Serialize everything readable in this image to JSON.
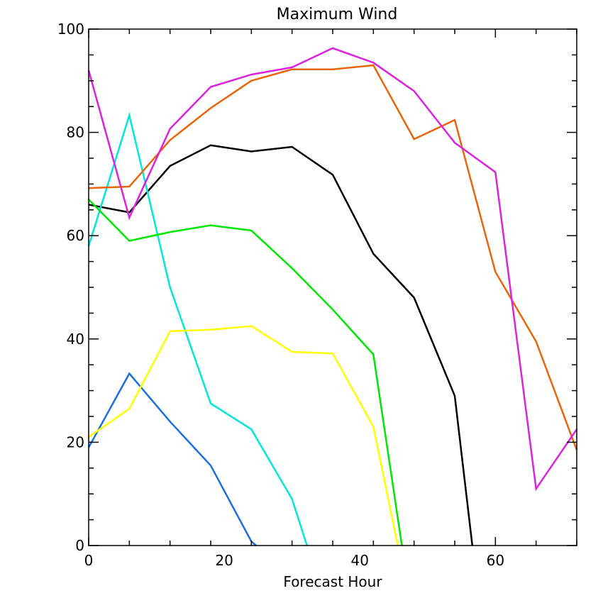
{
  "chart_data": {
    "type": "line",
    "title": "Maximum Wind",
    "xlabel": "Forecast Hour",
    "ylabel": "",
    "xlim": [
      0,
      72
    ],
    "ylim": [
      0,
      100
    ],
    "xticks": [
      0,
      20,
      40,
      60
    ],
    "yticks": [
      0,
      20,
      40,
      60,
      80,
      100
    ],
    "x_minor_step": 6,
    "y_minor_step": 5,
    "series": [
      {
        "color": "#000000",
        "points": [
          [
            0,
            66
          ],
          [
            6,
            64.5
          ],
          [
            12,
            73.5
          ],
          [
            18,
            77.5
          ],
          [
            24,
            76.3
          ],
          [
            30,
            77.2
          ],
          [
            36,
            71.8
          ],
          [
            42,
            56.5
          ],
          [
            48,
            48
          ],
          [
            54,
            29
          ],
          [
            56.6,
            0
          ]
        ]
      },
      {
        "color": "#00e8d8",
        "points": [
          [
            0,
            58
          ],
          [
            6,
            83.3
          ],
          [
            12,
            50
          ],
          [
            18,
            27.5
          ],
          [
            24,
            22.5
          ],
          [
            30,
            9
          ],
          [
            32.2,
            0
          ]
        ]
      },
      {
        "color": "#1a6fdf",
        "points": [
          [
            0,
            19
          ],
          [
            6,
            33.3
          ],
          [
            12,
            24
          ],
          [
            18,
            15.5
          ],
          [
            24,
            0.8
          ],
          [
            24.7,
            0
          ]
        ]
      },
      {
        "color": "#ffff00",
        "points": [
          [
            0,
            21
          ],
          [
            6,
            26.5
          ],
          [
            12,
            41.5
          ],
          [
            18,
            41.8
          ],
          [
            24,
            42.5
          ],
          [
            30,
            37.5
          ],
          [
            36,
            37.2
          ],
          [
            42,
            23
          ],
          [
            45.6,
            0
          ]
        ]
      },
      {
        "color": "#00e600",
        "points": [
          [
            0,
            67
          ],
          [
            6,
            59
          ],
          [
            12,
            60.7
          ],
          [
            18,
            62
          ],
          [
            24,
            61
          ],
          [
            30,
            53.7
          ],
          [
            36,
            45.7
          ],
          [
            42,
            37
          ],
          [
            46.2,
            0
          ]
        ]
      },
      {
        "color": "#e8650a",
        "points": [
          [
            0,
            69.2
          ],
          [
            6,
            69.5
          ],
          [
            12,
            78.5
          ],
          [
            18,
            84.7
          ],
          [
            24,
            90
          ],
          [
            30,
            92.2
          ],
          [
            36,
            92.2
          ],
          [
            42,
            93
          ],
          [
            48,
            78.7
          ],
          [
            54,
            82.4
          ],
          [
            60,
            53
          ],
          [
            66,
            39.5
          ],
          [
            72,
            18.5
          ]
        ]
      },
      {
        "color": "#dd22dd",
        "points": [
          [
            0,
            92
          ],
          [
            6,
            63.5
          ],
          [
            12,
            80.7
          ],
          [
            18,
            88.8
          ],
          [
            24,
            91.2
          ],
          [
            30,
            92.6
          ],
          [
            36,
            96.3
          ],
          [
            42,
            93.5
          ],
          [
            48,
            88
          ],
          [
            54,
            78
          ],
          [
            60,
            72.3
          ],
          [
            66,
            11
          ],
          [
            72,
            22.5
          ]
        ]
      }
    ]
  }
}
